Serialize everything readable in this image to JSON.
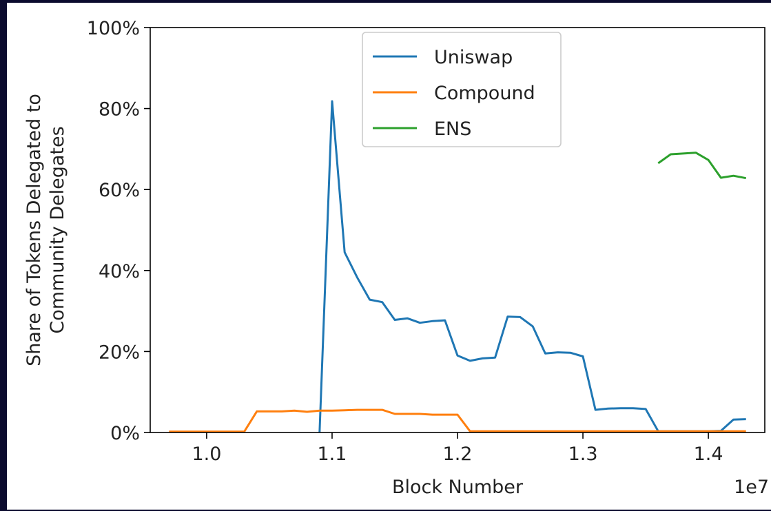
{
  "chart_data": {
    "type": "line",
    "title": "",
    "xlabel": "Block Number",
    "ylabel_line1": "Share of Tokens Delegated to",
    "ylabel_line2": "Community Delegates",
    "x_offset_label": "1e7",
    "xlim": [
      0.955,
      1.445
    ],
    "ylim": [
      0,
      100
    ],
    "x_ticks": [
      1.0,
      1.1,
      1.2,
      1.3,
      1.4
    ],
    "x_tick_labels": [
      "1.0",
      "1.1",
      "1.2",
      "1.3",
      "1.4"
    ],
    "y_ticks": [
      0,
      20,
      40,
      60,
      80,
      100
    ],
    "y_tick_labels": [
      "0%",
      "20%",
      "40%",
      "60%",
      "80%",
      "100%"
    ],
    "grid": false,
    "legend_position": "upper-center",
    "series": [
      {
        "name": "Uniswap",
        "color": "#1f77b4",
        "x": [
          1.09,
          1.1,
          1.11,
          1.12,
          1.13,
          1.14,
          1.15,
          1.16,
          1.17,
          1.18,
          1.19,
          1.2,
          1.21,
          1.22,
          1.23,
          1.24,
          1.25,
          1.26,
          1.27,
          1.28,
          1.29,
          1.3,
          1.31,
          1.32,
          1.33,
          1.34,
          1.35,
          1.36,
          1.37,
          1.38,
          1.39,
          1.4,
          1.41,
          1.42,
          1.43
        ],
        "y": [
          0.0,
          81.8,
          44.5,
          38.3,
          32.8,
          32.2,
          27.8,
          28.2,
          27.1,
          27.5,
          27.7,
          19.0,
          17.7,
          18.3,
          18.5,
          28.6,
          28.5,
          26.2,
          19.5,
          19.8,
          19.7,
          18.8,
          5.6,
          5.9,
          6.0,
          6.0,
          5.8,
          0.3,
          0.3,
          0.3,
          0.3,
          0.3,
          0.4,
          3.2,
          3.3
        ]
      },
      {
        "name": "Compound",
        "color": "#ff7f0e",
        "x": [
          0.97,
          0.98,
          0.99,
          1.0,
          1.01,
          1.02,
          1.03,
          1.04,
          1.05,
          1.06,
          1.07,
          1.08,
          1.09,
          1.1,
          1.11,
          1.12,
          1.13,
          1.14,
          1.15,
          1.16,
          1.17,
          1.18,
          1.19,
          1.2,
          1.21,
          1.22,
          1.23,
          1.24,
          1.25,
          1.26,
          1.27,
          1.28,
          1.29,
          1.3,
          1.31,
          1.32,
          1.33,
          1.34,
          1.35,
          1.36,
          1.37,
          1.38,
          1.39,
          1.4,
          1.41,
          1.42,
          1.43
        ],
        "y": [
          0.2,
          0.2,
          0.2,
          0.2,
          0.2,
          0.2,
          0.2,
          5.2,
          5.2,
          5.2,
          5.4,
          5.1,
          5.4,
          5.4,
          5.5,
          5.6,
          5.6,
          5.6,
          4.6,
          4.6,
          4.6,
          4.4,
          4.4,
          4.4,
          0.3,
          0.3,
          0.3,
          0.3,
          0.3,
          0.3,
          0.3,
          0.3,
          0.3,
          0.3,
          0.3,
          0.3,
          0.3,
          0.3,
          0.3,
          0.3,
          0.3,
          0.3,
          0.3,
          0.3,
          0.3,
          0.3,
          0.3
        ]
      },
      {
        "name": "ENS",
        "color": "#2ca02c",
        "x": [
          1.36,
          1.37,
          1.38,
          1.39,
          1.4,
          1.41,
          1.42,
          1.43
        ],
        "y": [
          66.5,
          68.7,
          68.9,
          69.1,
          67.3,
          62.9,
          63.4,
          62.8
        ]
      }
    ]
  }
}
